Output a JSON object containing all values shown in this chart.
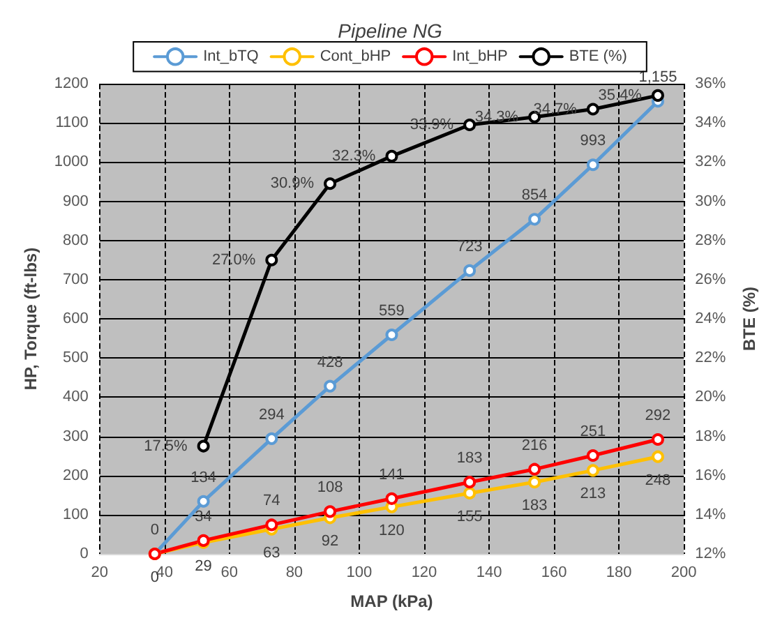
{
  "chart_data": {
    "type": "line",
    "title": "Pipeline NG",
    "xlabel": "MAP (kPa)",
    "ylabel": "HP, Torque (ft-lbs)",
    "y2label": "BTE (%)",
    "x": [
      37,
      52,
      73,
      91,
      110,
      134,
      154,
      172,
      192
    ],
    "xlim": [
      20,
      200
    ],
    "xticks": [
      20,
      40,
      60,
      80,
      100,
      120,
      140,
      160,
      180,
      200
    ],
    "ylim": [
      0,
      1200
    ],
    "yticks": [
      0,
      100,
      200,
      300,
      400,
      500,
      600,
      700,
      800,
      900,
      1000,
      1100,
      1200
    ],
    "y2lim": [
      12,
      36
    ],
    "y2ticks": [
      {
        "value": 12,
        "label": "12%"
      },
      {
        "value": 14,
        "label": "14%"
      },
      {
        "value": 16,
        "label": "16%"
      },
      {
        "value": 18,
        "label": "18%"
      },
      {
        "value": 20,
        "label": "20%"
      },
      {
        "value": 22,
        "label": "22%"
      },
      {
        "value": 24,
        "label": "24%"
      },
      {
        "value": 26,
        "label": "26%"
      },
      {
        "value": 28,
        "label": "28%"
      },
      {
        "value": 30,
        "label": "30%"
      },
      {
        "value": 32,
        "label": "32%"
      },
      {
        "value": 34,
        "label": "34%"
      },
      {
        "value": 36,
        "label": "36%"
      }
    ],
    "grid": true,
    "legend": "top",
    "marker": "circle",
    "line_style": "solid",
    "series": [
      {
        "name": "Int_bTQ",
        "color": "#5b9bd5",
        "values": [
          0,
          134,
          294,
          428,
          559,
          723,
          854,
          993,
          1155
        ],
        "value_labels": [
          null,
          "134",
          "294",
          "428",
          "559",
          "723",
          "854",
          "993",
          "1,155"
        ]
      },
      {
        "name": "Cont_bHP",
        "color": "#ffc000",
        "values": [
          0,
          29,
          63,
          92,
          120,
          155,
          183,
          213,
          248
        ],
        "value_labels": [
          "0",
          "29",
          "63",
          "92",
          "120",
          "155",
          "183",
          "213",
          "248"
        ]
      },
      {
        "name": "Int_bHP",
        "color": "#ff0000",
        "values": [
          0,
          34,
          74,
          108,
          141,
          183,
          216,
          251,
          292
        ],
        "value_labels": [
          "0",
          "34",
          "74",
          "108",
          "141",
          "183",
          "216",
          "251",
          "292"
        ]
      },
      {
        "name": "BTE (%)",
        "color": "#000000",
        "axis": "y2",
        "x": [
          52,
          73,
          91,
          110,
          134,
          154,
          172,
          192
        ],
        "values": [
          17.5,
          27.0,
          30.9,
          32.3,
          33.9,
          34.3,
          34.7,
          35.4
        ],
        "value_labels": [
          "17.5%",
          "27.0%",
          "30.9%",
          "32.3%",
          "33.9%",
          "34.3%",
          "34.7%",
          "35.4%"
        ]
      }
    ]
  }
}
